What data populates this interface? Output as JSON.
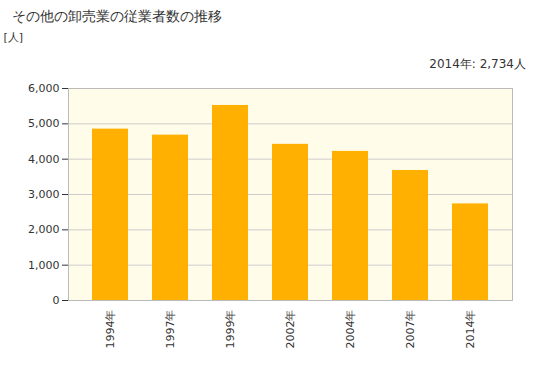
{
  "chart_data": {
    "type": "bar",
    "title": "その他の卸売業の従業者数の推移",
    "y_label": "[人]",
    "annotation": "2014年: 2,734人",
    "categories": [
      "1994年",
      "1997年",
      "1999年",
      "2002年",
      "2004年",
      "2007年",
      "2014年"
    ],
    "values": [
      4850,
      4680,
      5520,
      4420,
      4220,
      3680,
      2734
    ],
    "color": "#ffb000",
    "ylim": [
      0,
      6000
    ],
    "yticks": [
      0,
      {
        "value": 1000,
        "label": "1,000"
      },
      {
        "value": 2000,
        "label": "2,000"
      },
      {
        "value": 3000,
        "label": "3,000"
      },
      {
        "value": 4000,
        "label": "4,000"
      },
      {
        "value": 5000,
        "label": "5,000"
      },
      {
        "value": 6000,
        "label": "6,000"
      }
    ],
    "grid": true
  }
}
